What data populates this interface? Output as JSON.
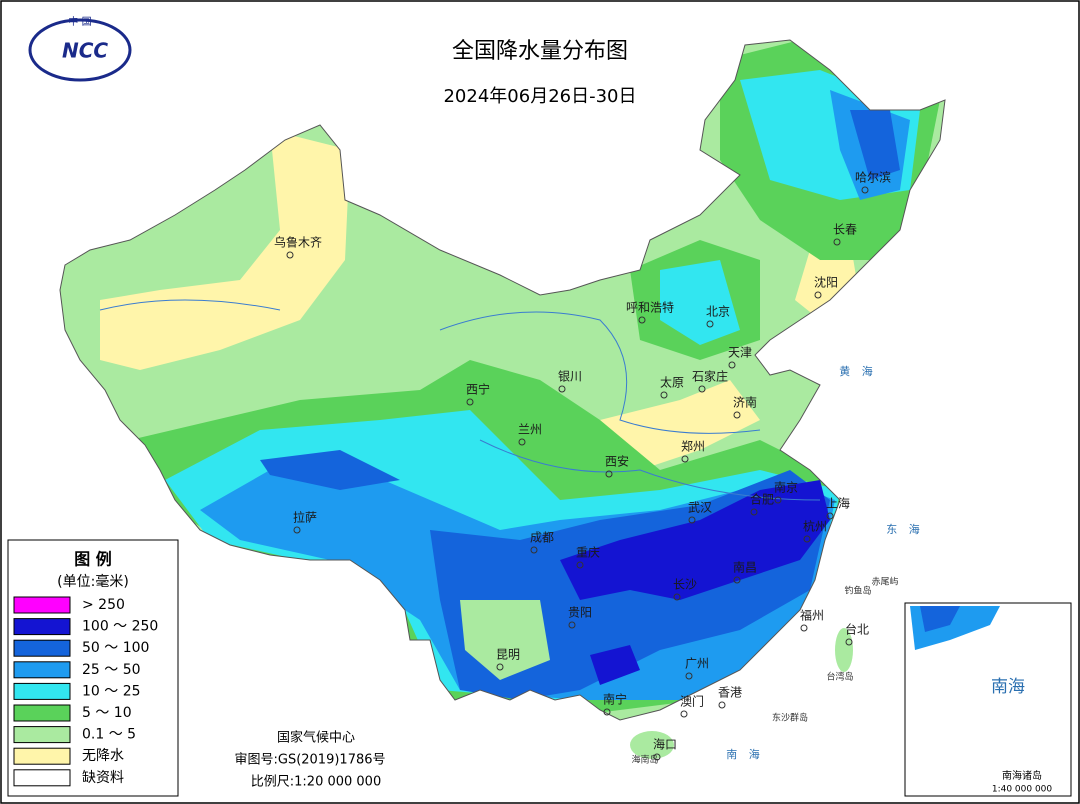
{
  "header": {
    "logo_top": "中 国",
    "logo": "NCC",
    "title": "全国降水量分布图",
    "date": "2024年06月26日-30日"
  },
  "legend": {
    "title": "图 例",
    "unit": "(单位:毫米)",
    "items": [
      {
        "label": "> 250",
        "color": "#ff00ff"
      },
      {
        "label": "100 ～ 250",
        "color": "#1414d2"
      },
      {
        "label": "50 ～ 100",
        "color": "#1464dc"
      },
      {
        "label": "25 ～ 50",
        "color": "#1e9bf0"
      },
      {
        "label": "10 ～ 25",
        "color": "#32e6f0"
      },
      {
        "label": "5 ～ 10",
        "color": "#5ad25a"
      },
      {
        "label": "0.1 ～ 5",
        "color": "#aaeaa0"
      },
      {
        "label": "无降水",
        "color": "#fff5aa"
      },
      {
        "label": "缺资料",
        "color": "#ffffff"
      }
    ]
  },
  "cities": [
    {
      "name": "乌鲁木齐"
    },
    {
      "name": "呼和浩特"
    },
    {
      "name": "北京"
    },
    {
      "name": "天津"
    },
    {
      "name": "哈尔滨"
    },
    {
      "name": "长春"
    },
    {
      "name": "沈阳"
    },
    {
      "name": "银川"
    },
    {
      "name": "太原"
    },
    {
      "name": "石家庄"
    },
    {
      "name": "济南"
    },
    {
      "name": "西宁"
    },
    {
      "name": "兰州"
    },
    {
      "name": "西安"
    },
    {
      "name": "郑州"
    },
    {
      "name": "拉萨"
    },
    {
      "name": "成都"
    },
    {
      "name": "重庆"
    },
    {
      "name": "武汉"
    },
    {
      "name": "合肥"
    },
    {
      "name": "南京"
    },
    {
      "name": "上海"
    },
    {
      "name": "杭州"
    },
    {
      "name": "南昌"
    },
    {
      "name": "长沙"
    },
    {
      "name": "贵阳"
    },
    {
      "name": "昆明"
    },
    {
      "name": "福州"
    },
    {
      "name": "台北"
    },
    {
      "name": "广州"
    },
    {
      "name": "南宁"
    },
    {
      "name": "澳门"
    },
    {
      "name": "香港"
    },
    {
      "name": "海口"
    }
  ],
  "places": [
    {
      "name": "钓鱼岛"
    },
    {
      "name": "赤尾屿"
    },
    {
      "name": "台湾岛"
    },
    {
      "name": "东沙群岛"
    },
    {
      "name": "海南岛"
    }
  ],
  "seas": [
    {
      "name": "黄 海"
    },
    {
      "name": "东 海"
    },
    {
      "name": "南 海"
    }
  ],
  "footer": {
    "agency": "国家气候中心",
    "approval": "审图号:GS(2019)1786号",
    "scale": "比例尺:1:20 000 000"
  },
  "inset": {
    "sea": "南海",
    "islands": "南海诸岛",
    "scale": "1:40 000 000"
  }
}
